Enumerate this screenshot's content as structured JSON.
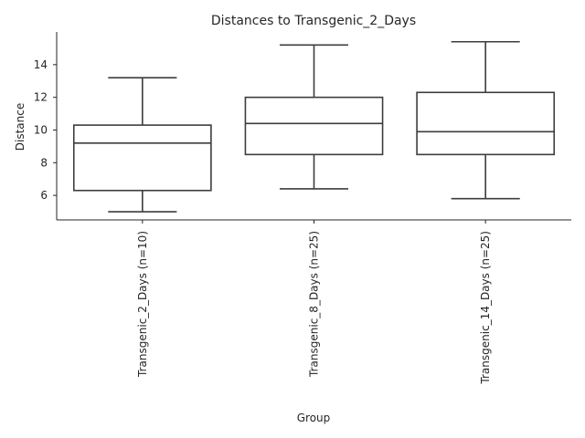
{
  "chart_data": {
    "type": "box",
    "title": "Distances to Transgenic_2_Days",
    "xlabel": "Group",
    "ylabel": "Distance",
    "ylim": [
      4.5,
      16.0
    ],
    "yticks": [
      6,
      8,
      10,
      12,
      14
    ],
    "grid": false,
    "categories": [
      "Transgenic_2_Days (n=10)",
      "Transgenic_8_Days (n=25)",
      "Transgenic_14_Days (n=25)"
    ],
    "boxes": [
      {
        "whisker_low": 5.0,
        "q1": 6.3,
        "median": 9.2,
        "q3": 10.3,
        "whisker_high": 13.2
      },
      {
        "whisker_low": 6.4,
        "q1": 8.5,
        "median": 10.4,
        "q3": 12.0,
        "whisker_high": 15.2
      },
      {
        "whisker_low": 5.8,
        "q1": 8.5,
        "median": 9.9,
        "q3": 12.3,
        "whisker_high": 15.4
      }
    ],
    "colors": {
      "box_edge": "#3d3d3d",
      "box_fill": "#ffffff",
      "axis": "#262626",
      "text": "#262626"
    }
  }
}
